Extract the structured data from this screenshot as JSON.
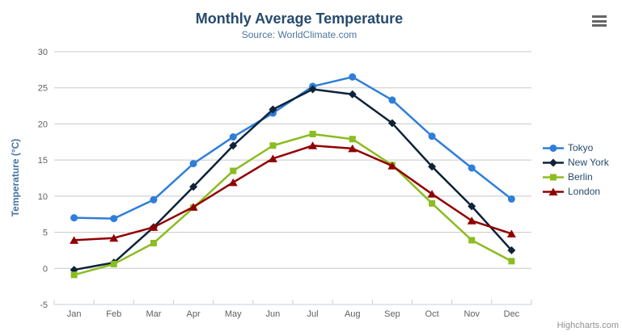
{
  "theme": {
    "background": "#ffffff",
    "title-color": "#274b6d",
    "subtitle-color": "#4d759e",
    "axis-title-color": "#4572a7",
    "axis-label-color": "#606060",
    "legend-text-color": "#274b6d",
    "grid-color": "#c8c8c8",
    "axis-line-color": "#c0d0e0",
    "credits-color": "#909090",
    "menu-icon-color": "#666666"
  },
  "credits": {
    "label": "Highcharts.com"
  },
  "chart_data": {
    "type": "line",
    "title": "Monthly Average Temperature",
    "subtitle": "Source: WorldClimate.com",
    "xlabel": "",
    "ylabel": "Temperature (°C)",
    "categories": [
      "Jan",
      "Feb",
      "Mar",
      "Apr",
      "May",
      "Jun",
      "Jul",
      "Aug",
      "Sep",
      "Oct",
      "Nov",
      "Dec"
    ],
    "ylim": [
      -5,
      30
    ],
    "yticks": [
      -5,
      0,
      5,
      10,
      15,
      20,
      25,
      30
    ],
    "grid": "horizontal",
    "legend_position": "right",
    "series": [
      {
        "name": "Tokyo",
        "color": "#2f7ed8",
        "marker": "circle",
        "values": [
          7.0,
          6.9,
          9.5,
          14.5,
          18.2,
          21.5,
          25.2,
          26.5,
          23.3,
          18.3,
          13.9,
          9.6
        ]
      },
      {
        "name": "New York",
        "color": "#0d233a",
        "marker": "diamond",
        "values": [
          -0.2,
          0.8,
          5.7,
          11.3,
          17.0,
          22.0,
          24.8,
          24.1,
          20.1,
          14.1,
          8.6,
          2.5
        ]
      },
      {
        "name": "Berlin",
        "color": "#8bbc21",
        "marker": "square",
        "values": [
          -0.9,
          0.6,
          3.5,
          8.4,
          13.5,
          17.0,
          18.6,
          17.9,
          14.3,
          9.0,
          3.9,
          1.0
        ]
      },
      {
        "name": "London",
        "color": "#910000",
        "marker": "triangle",
        "values": [
          3.9,
          4.2,
          5.7,
          8.5,
          11.9,
          15.2,
          17.0,
          16.6,
          14.2,
          10.3,
          6.6,
          4.8
        ]
      }
    ]
  }
}
